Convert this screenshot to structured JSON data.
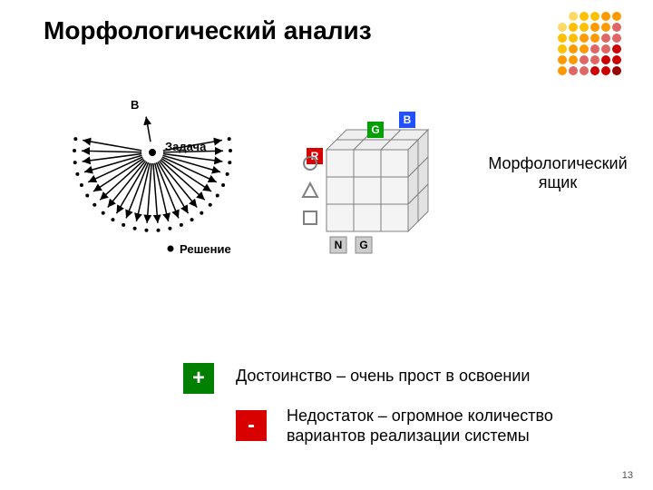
{
  "title": "Морфологический анализ",
  "dot_grid": {
    "colors": [
      "#ffd966",
      "#ffc000",
      "#ff9900",
      "#e06666",
      "#cc0000",
      "#990000"
    ],
    "rows": 6,
    "cols": 6,
    "dot_r": 5,
    "spacing": 12
  },
  "arrows_diagram": {
    "center_label": "Задача",
    "outer_label": "Решение",
    "top_label": "В",
    "arrow_count": 24,
    "inner_r": 12,
    "outer_r": 78,
    "arrow_color": "#000000",
    "dot_color": "#000000",
    "start_angle_deg": -10,
    "end_angle_deg": 190,
    "font_size_center": 13,
    "font_size_outer": 13
  },
  "cube_diagram": {
    "cell": 30,
    "depth": 22,
    "stroke": "#808080",
    "fill": "#f4f4f4",
    "side_fill": "#e2e2e2",
    "top_fill": "#efefef",
    "labels_top": [
      {
        "text": "B",
        "bg": "#2050ff",
        "fg": "#ffffff"
      },
      {
        "text": "G",
        "bg": "#00a000",
        "fg": "#ffffff"
      },
      {
        "text": "R",
        "bg": "#d80000",
        "fg": "#ffffff"
      }
    ],
    "labels_left": [
      {
        "shape": "circle"
      },
      {
        "shape": "triangle"
      },
      {
        "shape": "square"
      }
    ],
    "labels_bottom": [
      {
        "text": "N",
        "bg": "#cccccc",
        "fg": "#000000"
      },
      {
        "text": "G",
        "bg": "#cccccc",
        "fg": "#000000"
      }
    ],
    "font_size_badge": 12
  },
  "cube_caption": "Морфологический ящик",
  "plus": {
    "symbol": "+",
    "text": "Достоинство – очень прост в освоении"
  },
  "minus": {
    "symbol": "-",
    "text": "Недостаток – огромное количество вариантов реализации системы"
  },
  "page_number": "13"
}
